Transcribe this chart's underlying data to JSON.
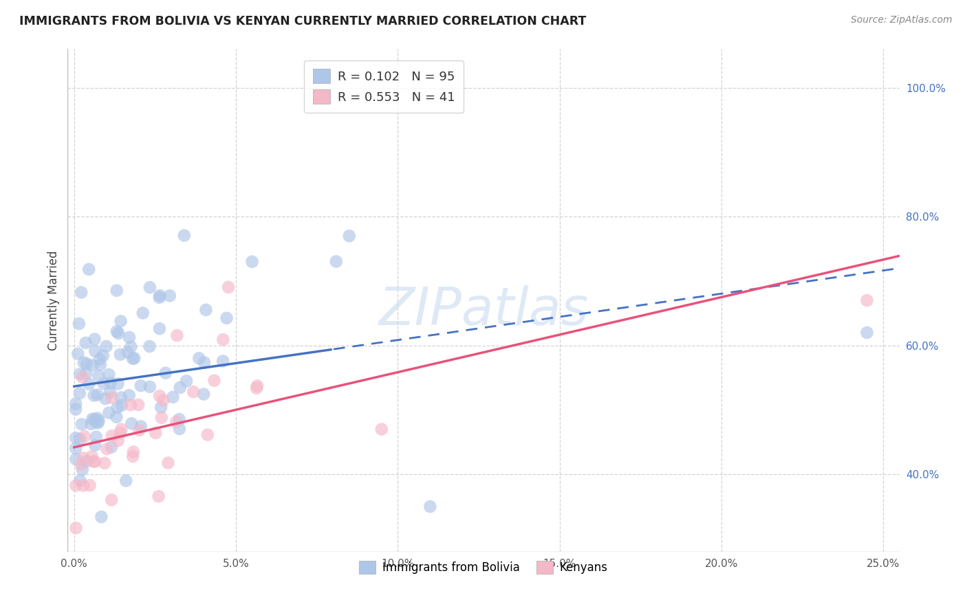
{
  "title": "IMMIGRANTS FROM BOLIVIA VS KENYAN CURRENTLY MARRIED CORRELATION CHART",
  "source": "Source: ZipAtlas.com",
  "xlabel_ticks": [
    "0.0%",
    "5.0%",
    "10.0%",
    "15.0%",
    "20.0%",
    "25.0%"
  ],
  "xlabel_values": [
    0.0,
    0.05,
    0.1,
    0.15,
    0.2,
    0.25
  ],
  "ylabel_ticks": [
    "40.0%",
    "60.0%",
    "80.0%",
    "100.0%"
  ],
  "ylabel_values": [
    0.4,
    0.6,
    0.8,
    1.0
  ],
  "ylabel_label": "Currently Married",
  "xlim": [
    -0.002,
    0.255
  ],
  "ylim": [
    0.28,
    1.06
  ],
  "bolivia_color": "#aec6e8",
  "kenya_color": "#f5b8c8",
  "bolivia_line_color": "#4472c4",
  "kenya_line_color": "#e8527a",
  "legend_r_bolivia": "0.102",
  "legend_n_bolivia": "95",
  "legend_r_kenya": "0.553",
  "legend_n_kenya": "41",
  "watermark": "ZIPatlas",
  "background_color": "#ffffff",
  "grid_color": "#c8c8c8"
}
